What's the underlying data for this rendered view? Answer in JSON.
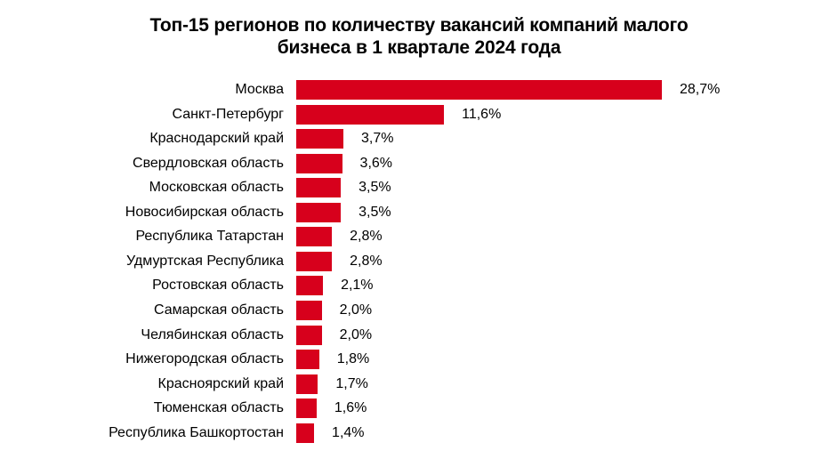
{
  "title": {
    "line1": "Топ-15 регионов по количеству вакансий компаний малого",
    "line2": "бизнеса в 1 квартале 2024 года"
  },
  "colors": {
    "bar": "#d7001c",
    "text": "#000000",
    "background": "#ffffff"
  },
  "chart_data": {
    "type": "bar",
    "orientation": "horizontal",
    "title": "Топ-15 регионов по количеству вакансий компаний малого бизнеса в 1 квартале 2024 года",
    "xlabel": "",
    "ylabel": "",
    "unit": "%",
    "grid": false,
    "legend": null,
    "categories": [
      "Москва",
      "Санкт-Петербург",
      "Краснодарский край",
      "Свердловская область",
      "Московская область",
      "Новосибирская область",
      "Республика Татарстан",
      "Удмуртская Республика",
      "Ростовская область",
      "Самарская область",
      "Челябинская область",
      "Нижегородская область",
      "Красноярский край",
      "Тюменская область",
      "Республика Башкортостан"
    ],
    "values": [
      28.7,
      11.6,
      3.7,
      3.6,
      3.5,
      3.5,
      2.8,
      2.8,
      2.1,
      2.0,
      2.0,
      1.8,
      1.7,
      1.6,
      1.4
    ],
    "value_labels": [
      "28,7%",
      "11,6%",
      "3,7%",
      "3,6%",
      "3,5%",
      "3,5%",
      "2,8%",
      "2,8%",
      "2,1%",
      "2,0%",
      "2,0%",
      "1,8%",
      "1,7%",
      "1,6%",
      "1,4%"
    ],
    "xlim": [
      0,
      28.7
    ]
  }
}
